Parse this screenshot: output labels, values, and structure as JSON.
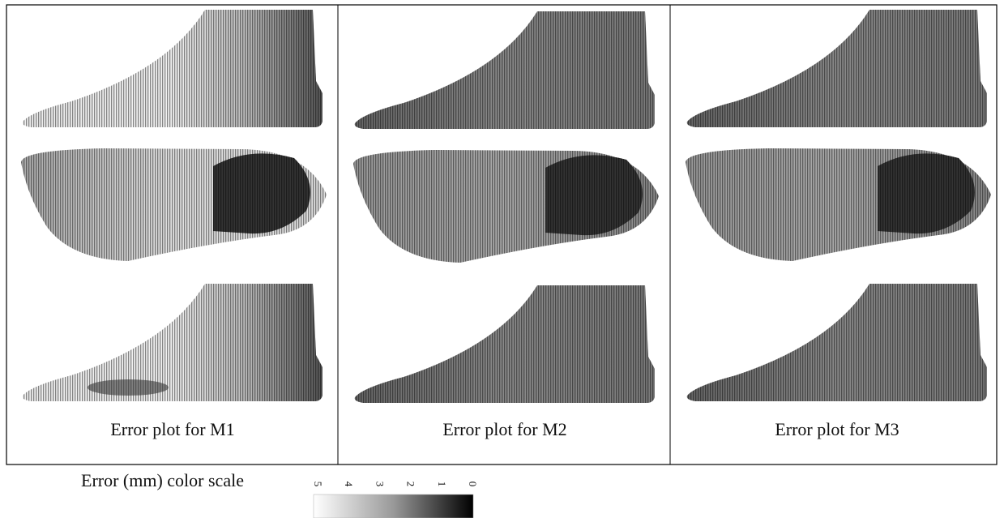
{
  "panels": [
    {
      "caption": "Error plot for M1"
    },
    {
      "caption": "Error plot for M2"
    },
    {
      "caption": "Error plot for M3"
    }
  ],
  "colorbar": {
    "label": "Error (mm) color scale",
    "ticks": [
      5,
      4,
      3,
      2,
      1,
      0
    ]
  }
}
